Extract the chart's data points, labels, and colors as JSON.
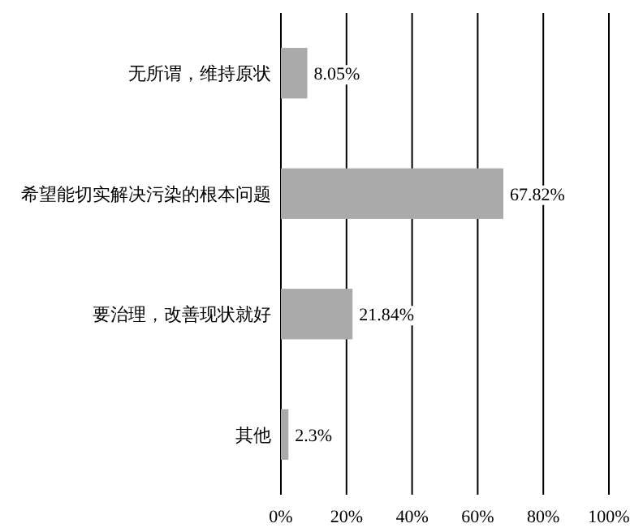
{
  "chart_data": {
    "type": "bar",
    "orientation": "horizontal",
    "categories": [
      "无所谓，维持原状",
      "希望能切实解决污染的根本问题",
      "要治理，改善现状就好",
      "其他"
    ],
    "values": [
      8.05,
      67.82,
      21.84,
      2.3
    ],
    "value_labels": [
      "8.05%",
      "67.82%",
      "21.84%",
      "2.3%"
    ],
    "color": "#aaaaaa",
    "xlim": [
      0,
      100
    ],
    "xticks": [
      {
        "value": 0,
        "label": "0%"
      },
      {
        "value": 20,
        "label": "20%"
      },
      {
        "value": 40,
        "label": "40%"
      },
      {
        "value": 60,
        "label": "60%"
      },
      {
        "value": 80,
        "label": "80%"
      },
      {
        "value": 100,
        "label": "100%"
      }
    ],
    "grid": "x"
  }
}
